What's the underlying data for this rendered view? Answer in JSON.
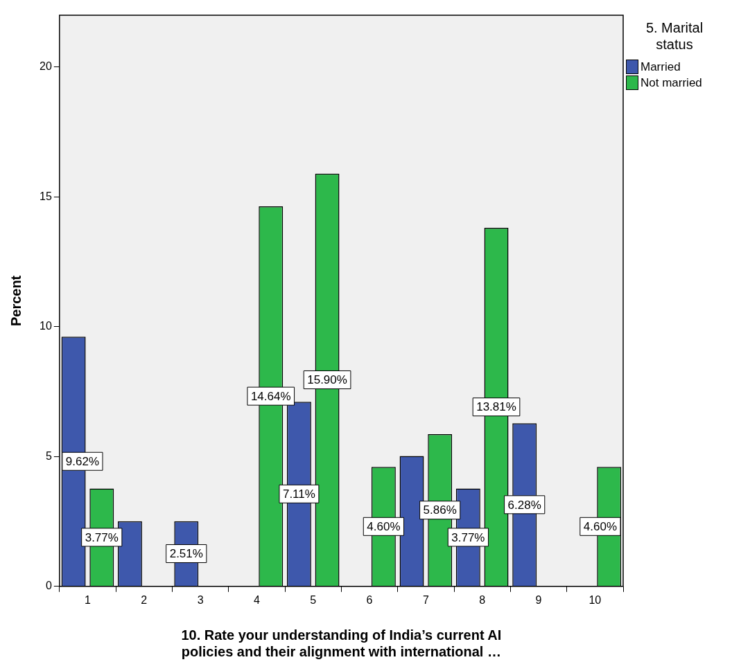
{
  "chart_data": {
    "type": "bar",
    "xlabel": "10. Rate your understanding of India’s current AI policies and their alignment with international …",
    "ylabel": "Percent",
    "legend_title": "5. Marital status",
    "categories": [
      "1",
      "2",
      "3",
      "4",
      "5",
      "6",
      "7",
      "8",
      "9",
      "10"
    ],
    "series": [
      {
        "name": "Married",
        "color": "#3e58ac",
        "values": [
          9.62,
          2.51,
          2.51,
          null,
          7.11,
          null,
          5.02,
          3.77,
          6.28,
          null
        ],
        "value_labels": [
          "9.62%",
          null,
          "2.51%",
          null,
          "7.11%",
          null,
          null,
          "3.77%",
          "6.28%",
          null
        ]
      },
      {
        "name": "Not married",
        "color": "#2db84b",
        "values": [
          3.77,
          null,
          null,
          14.64,
          15.9,
          4.6,
          5.86,
          13.81,
          null,
          4.6
        ],
        "value_labels": [
          "3.77%",
          null,
          null,
          "14.64%",
          "15.90%",
          "4.60%",
          "5.86%",
          "13.81%",
          null,
          "4.60%"
        ]
      }
    ],
    "ylim": [
      0,
      22
    ],
    "yticks": [
      0,
      5,
      10,
      15,
      20
    ],
    "grid": false,
    "legend": "top right"
  }
}
